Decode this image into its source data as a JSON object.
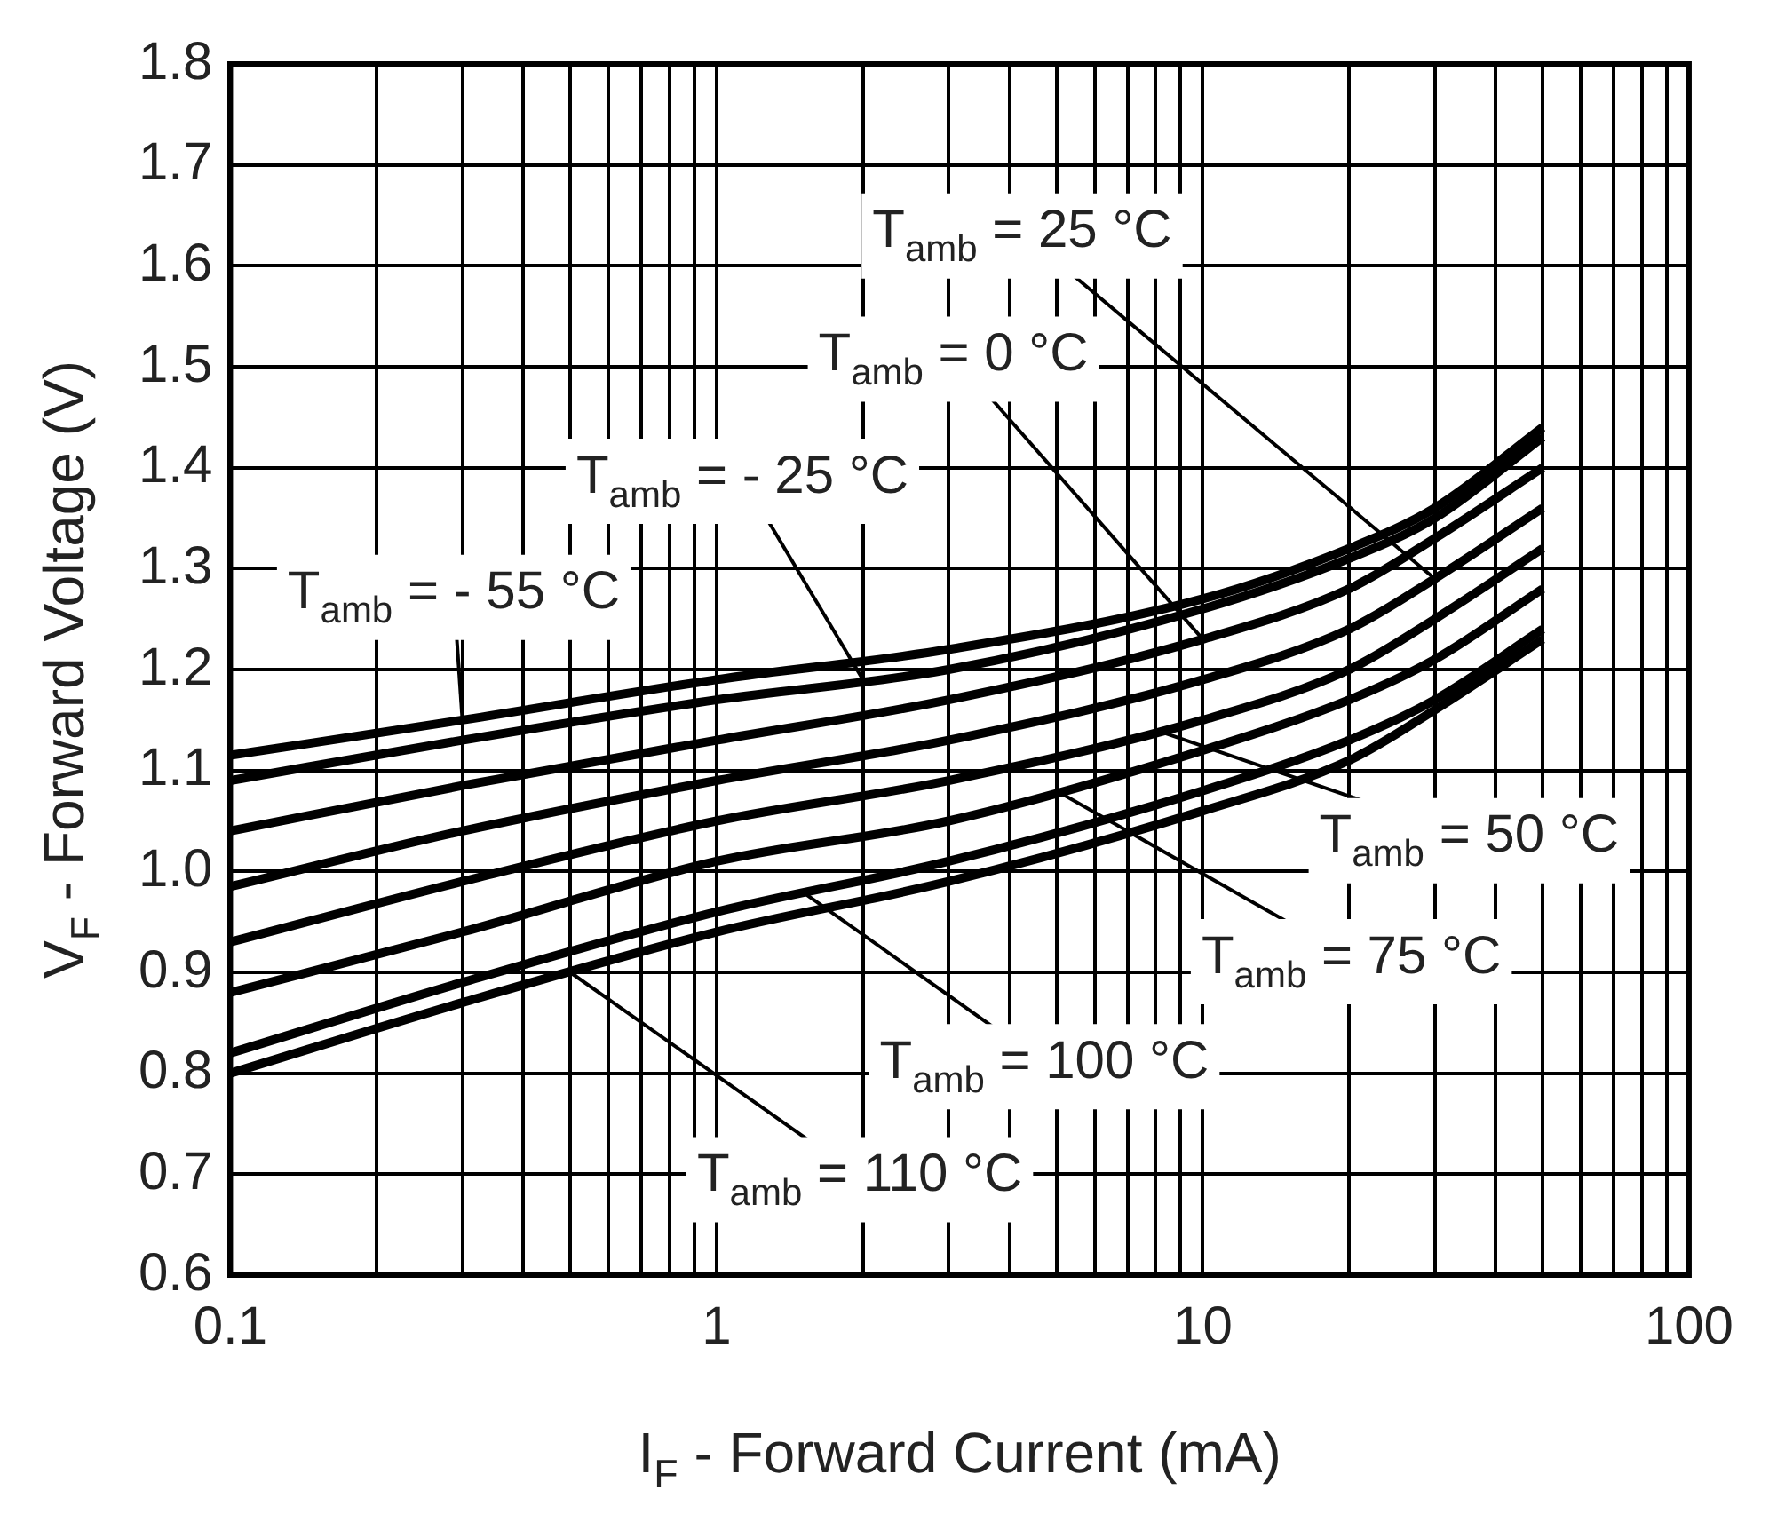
{
  "chart_data": {
    "type": "line",
    "xlabel": "I$_{F}$ - Forward Current (mA)",
    "ylabel": "V$_{F}$ - Forward Voltage (V)",
    "log": "x",
    "xlim": [
      0.1,
      100
    ],
    "xticks": [
      0.1,
      {
        "value": 0.2,
        "label": null
      },
      {
        "value": 0.3,
        "label": null
      },
      {
        "value": 0.4,
        "label": null
      },
      {
        "value": 0.5,
        "label": null
      },
      {
        "value": 0.6,
        "label": null
      },
      {
        "value": 0.7,
        "label": null
      },
      {
        "value": 0.8,
        "label": null
      },
      {
        "value": 0.9,
        "label": null
      },
      1,
      {
        "value": 2,
        "label": null
      },
      {
        "value": 3,
        "label": null
      },
      {
        "value": 4,
        "label": null
      },
      {
        "value": 5,
        "label": null
      },
      {
        "value": 6,
        "label": null
      },
      {
        "value": 7,
        "label": null
      },
      {
        "value": 8,
        "label": null
      },
      {
        "value": 9,
        "label": null
      },
      10,
      {
        "value": 20,
        "label": null
      },
      {
        "value": 30,
        "label": null
      },
      {
        "value": 40,
        "label": null
      },
      {
        "value": 50,
        "label": null
      },
      {
        "value": 60,
        "label": null
      },
      {
        "value": 70,
        "label": null
      },
      {
        "value": 80,
        "label": null
      },
      {
        "value": 90,
        "label": null
      },
      100
    ],
    "ylim": [
      0.6,
      1.8
    ],
    "yticks": [
      {
        "value": 0.6,
        "label": "0.6"
      },
      {
        "value": 0.7,
        "label": "0.7"
      },
      {
        "value": 0.8,
        "label": "0.8"
      },
      {
        "value": 0.9,
        "label": "0.9"
      },
      {
        "value": 1.0,
        "label": "1.0"
      },
      {
        "value": 1.1,
        "label": "1.1"
      },
      {
        "value": 1.2,
        "label": "1.2"
      },
      {
        "value": 1.3,
        "label": "1.3"
      },
      {
        "value": 1.4,
        "label": "1.4"
      },
      {
        "value": 1.5,
        "label": "1.5"
      },
      {
        "value": 1.6,
        "label": "1.6"
      },
      {
        "value": 1.7,
        "label": "1.7"
      },
      {
        "value": 1.8,
        "label": "1.8"
      }
    ],
    "grid": true,
    "legend": false,
    "marker": "none",
    "line_style": "solid",
    "x": [
      0.1,
      0.3,
      1,
      3,
      10,
      20,
      30,
      50
    ],
    "series": [
      {
        "color": "#000000",
        "values": [
          1.115,
          1.15,
          1.19,
          1.22,
          1.27,
          1.32,
          1.36,
          1.44
        ]
      },
      {
        "color": "#000000",
        "values": [
          1.09,
          1.13,
          1.17,
          1.2,
          1.26,
          1.31,
          1.35,
          1.43
        ]
      },
      {
        "color": "#000000",
        "values": [
          1.04,
          1.085,
          1.13,
          1.17,
          1.23,
          1.28,
          1.33,
          1.4
        ]
      },
      {
        "color": "#000000",
        "values": [
          0.985,
          1.04,
          1.09,
          1.13,
          1.19,
          1.24,
          1.29,
          1.36
        ]
      },
      {
        "color": "#000000",
        "values": [
          0.93,
          0.99,
          1.05,
          1.09,
          1.15,
          1.2,
          1.25,
          1.32
        ]
      },
      {
        "color": "#000000",
        "values": [
          0.88,
          0.94,
          1.01,
          1.05,
          1.12,
          1.17,
          1.21,
          1.28
        ]
      },
      {
        "color": "#000000",
        "values": [
          0.82,
          0.89,
          0.96,
          1.01,
          1.08,
          1.13,
          1.17,
          1.24
        ]
      },
      {
        "color": "#000000",
        "values": [
          0.8,
          0.87,
          0.94,
          0.99,
          1.06,
          1.11,
          1.16,
          1.23
        ]
      }
    ],
    "annotations": [
      {
        "text": "T$_{amb}$ = 25 °C",
        "x": 30,
        "y": 1.29
      },
      {
        "text": "T$_{amb}$ = 0 °C",
        "x": 10,
        "y": 1.23
      },
      {
        "text": "T$_{amb}$ = - 25 °C",
        "x": 2,
        "y": 1.19
      },
      {
        "text": "T$_{amb}$ = - 55 °C",
        "x": 0.3,
        "y": 1.15
      },
      {
        "text": "T$_{amb}$ = 50 °C",
        "x": 8,
        "y": 1.14
      },
      {
        "text": "T$_{amb}$ = 75 °C",
        "x": 5,
        "y": 1.08
      },
      {
        "text": "T$_{amb}$ = 100 °C",
        "x": 1.5,
        "y": 0.98
      },
      {
        "text": "T$_{amb}$ = 110 °C",
        "x": 0.5,
        "y": 0.9
      }
    ]
  }
}
